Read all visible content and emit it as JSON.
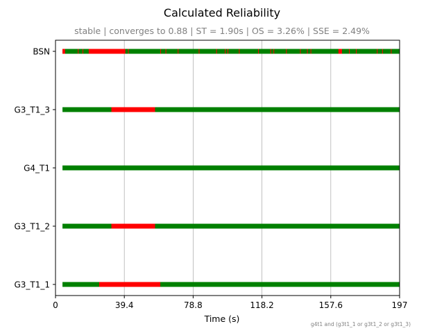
{
  "chart_data": {
    "type": "timeline",
    "title": "Calculated Reliability",
    "subtitle": "stable | converges to 0.88 | ST = 1.90s | OS = 3.26% | SSE = 2.49%",
    "xlabel": "Time (s)",
    "xlim": [
      0,
      197
    ],
    "xticks": [
      0,
      39.4,
      78.8,
      118.2,
      157.6,
      197
    ],
    "xtick_labels": [
      "0",
      "39.4",
      "78.8",
      "118.2",
      "157.6",
      "197"
    ],
    "grid": "vertical at x ticks",
    "footnote": "g4t1 and (g3t1_1 or g3t1_2 or g3t1_3)",
    "colors": {
      "ok": "#008000",
      "fail": "#ff0000"
    },
    "series": [
      {
        "name": "BSN",
        "start": 4,
        "end": 197,
        "fail": [
          [
            4,
            5.5
          ],
          [
            12.8,
            13.2
          ],
          [
            15.5,
            15.8
          ],
          [
            19,
            40
          ],
          [
            41.5,
            41.8
          ],
          [
            60,
            60.3
          ],
          [
            63,
            63.3
          ],
          [
            70,
            70.3
          ],
          [
            82,
            82.3
          ],
          [
            92,
            92.3
          ],
          [
            97,
            97.4
          ],
          [
            98.5,
            98.8
          ],
          [
            105,
            105.3
          ],
          [
            116,
            116.3
          ],
          [
            123,
            123.4
          ],
          [
            124.8,
            125.1
          ],
          [
            132,
            132.3
          ],
          [
            140,
            140.3
          ],
          [
            144,
            144.3
          ],
          [
            146,
            146.3
          ],
          [
            162,
            164
          ],
          [
            168,
            168.3
          ],
          [
            172,
            172.3
          ],
          [
            184,
            184.3
          ],
          [
            187,
            187.3
          ],
          [
            192,
            192.3
          ]
        ]
      },
      {
        "name": "G3_T1_3",
        "start": 4,
        "end": 197,
        "fail": [
          [
            32,
            57
          ]
        ]
      },
      {
        "name": "G4_T1",
        "start": 4,
        "end": 197,
        "fail": []
      },
      {
        "name": "G3_T1_2",
        "start": 4,
        "end": 197,
        "fail": [
          [
            32,
            57
          ]
        ]
      },
      {
        "name": "G3_T1_1",
        "start": 4,
        "end": 197,
        "fail": [
          [
            25,
            60
          ]
        ]
      }
    ]
  }
}
